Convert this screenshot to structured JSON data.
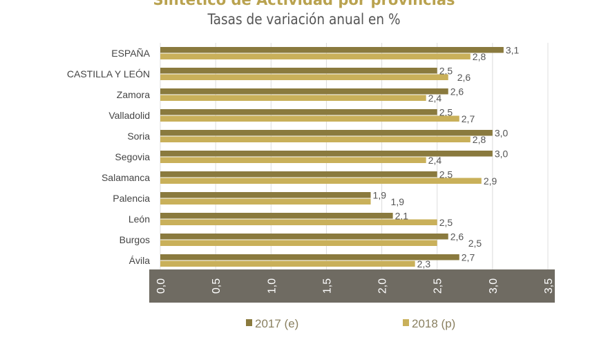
{
  "chart_data": {
    "type": "bar",
    "orientation": "horizontal",
    "title": "Sintético de Actividad por provincias",
    "subtitle": "Tasas de variación anual en %",
    "categories": [
      "ESPAÑA",
      "CASTILLA Y LEÓN",
      "Zamora",
      "Valladolid",
      "Soria",
      "Segovia",
      "Salamanca",
      "Palencia",
      "León",
      "Burgos",
      "Ávila"
    ],
    "series": [
      {
        "name": "2017 (e)",
        "color": "#8a7a3e",
        "values": [
          3.1,
          2.5,
          2.6,
          2.5,
          3.0,
          3.0,
          2.5,
          1.9,
          2.1,
          2.6,
          2.7
        ],
        "labels": [
          "3,1",
          "2,5",
          "2,6",
          "2,5",
          "3,0",
          "3,0",
          "2,5",
          "1,9",
          "2,1",
          "2,6",
          "2,7"
        ]
      },
      {
        "name": "2018 (p)",
        "color": "#c9b05a",
        "values": [
          2.8,
          2.6,
          2.4,
          2.7,
          2.8,
          2.4,
          2.9,
          1.9,
          2.5,
          2.5,
          2.3
        ],
        "labels": [
          "2,8",
          "2,6",
          "2,4",
          "2,7",
          "2,8",
          "2,4",
          "2,9",
          "1,9",
          "2,5",
          "2,5",
          "2,3"
        ]
      }
    ],
    "xlim": [
      0,
      3.5
    ],
    "xticks": [
      "0,0",
      "0,5",
      "1,0",
      "1,5",
      "2,0",
      "2,5",
      "3,0",
      "3,5"
    ],
    "grid": true,
    "legend": "bottom"
  }
}
